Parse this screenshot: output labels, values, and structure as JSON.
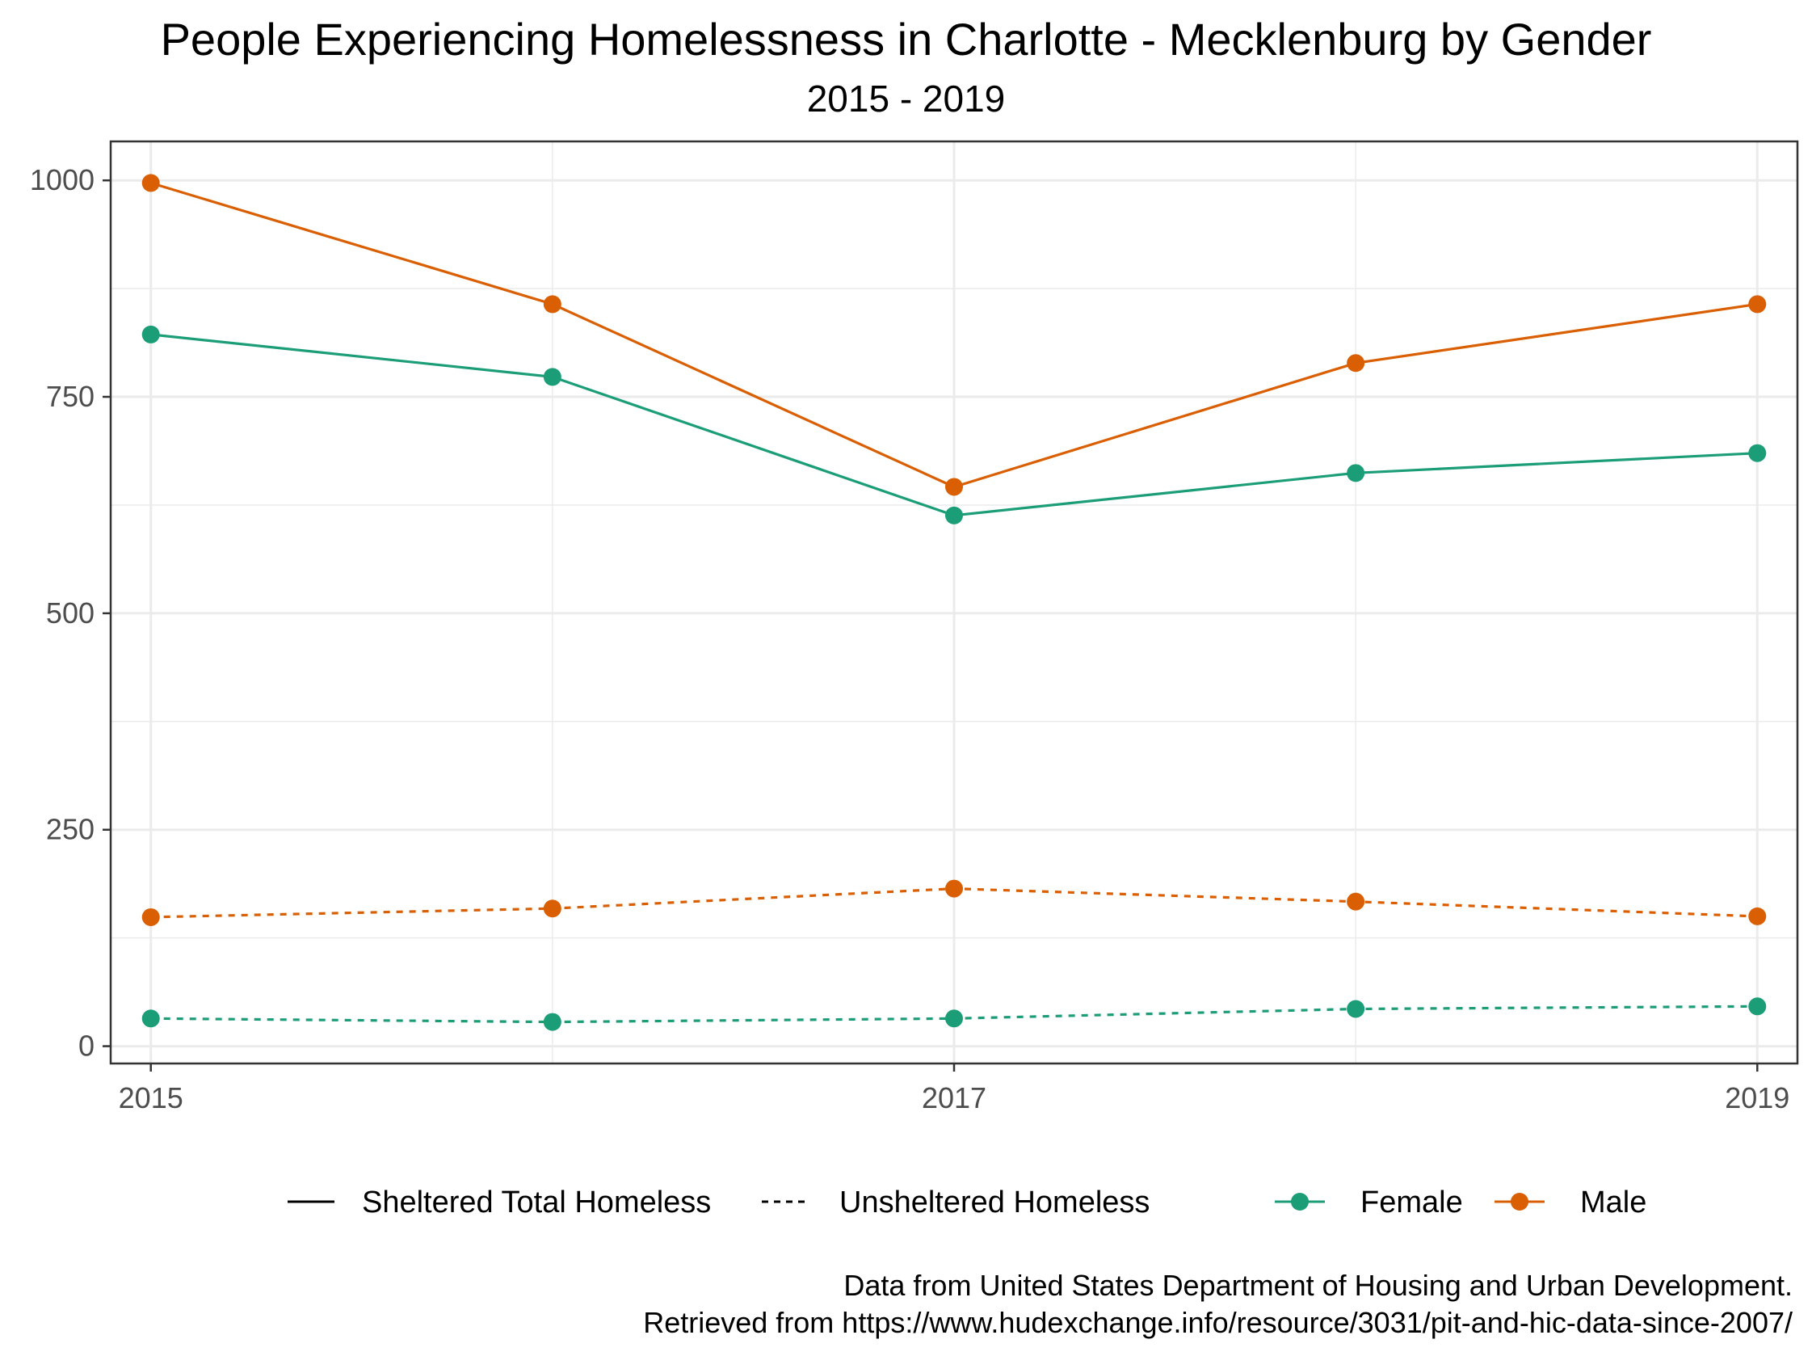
{
  "chart_data": {
    "type": "line",
    "title": "People Experiencing Homelessness in Charlotte - Mecklenburg by Gender",
    "subtitle": "2015 - 2019",
    "xlabel": "",
    "ylabel": "",
    "x": [
      2015,
      2016,
      2017,
      2018,
      2019
    ],
    "x_ticks": [
      2015,
      2017,
      2019
    ],
    "y_ticks": [
      0,
      250,
      500,
      750,
      1000
    ],
    "xlim": [
      2014.9,
      2019.1
    ],
    "ylim": [
      -20,
      1045
    ],
    "grid": true,
    "legend_position": "bottom",
    "linetype_legend": [
      "Sheltered Total Homeless",
      "Unsheltered Homeless"
    ],
    "color_legend": [
      "Female",
      "Male"
    ],
    "colors": {
      "Female": "#1b9e77",
      "Male": "#d95f02",
      "axis": "#333333",
      "grid": "#ebebeb"
    },
    "series": [
      {
        "gender": "Male",
        "shelter": "Sheltered Total Homeless",
        "linetype": "solid",
        "values": [
          997,
          857,
          646,
          789,
          857
        ]
      },
      {
        "gender": "Female",
        "shelter": "Sheltered Total Homeless",
        "linetype": "solid",
        "values": [
          822,
          773,
          613,
          662,
          685
        ]
      },
      {
        "gender": "Male",
        "shelter": "Unsheltered Homeless",
        "linetype": "dashed",
        "values": [
          149,
          159,
          182,
          167,
          150
        ]
      },
      {
        "gender": "Female",
        "shelter": "Unsheltered Homeless",
        "linetype": "dashed",
        "values": [
          32,
          28,
          32,
          43,
          46
        ]
      }
    ],
    "caption": [
      "Data from United States Department of Housing and Urban Development.",
      "Retrieved from https://www.hudexchange.info/resource/3031/pit-and-hic-data-since-2007/"
    ]
  }
}
